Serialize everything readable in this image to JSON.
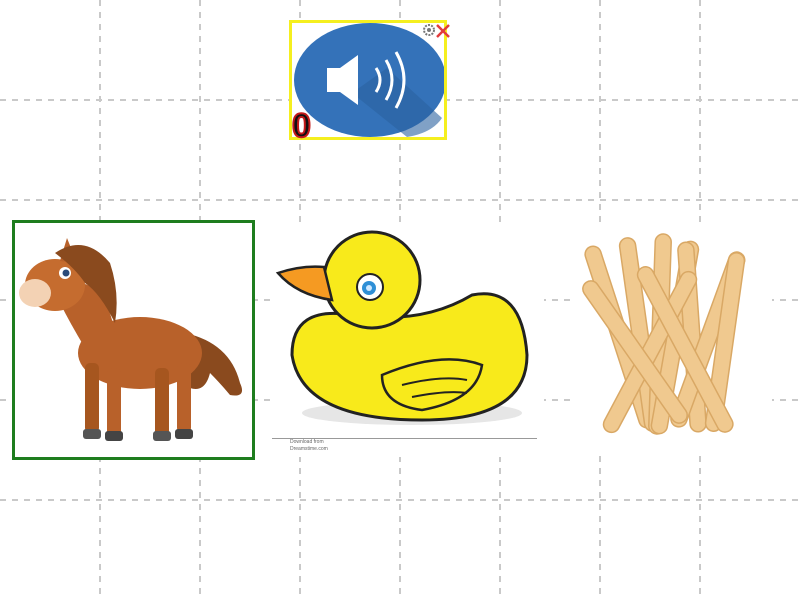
{
  "sound_card": {
    "counter": "0",
    "icons": [
      "speaker-icon",
      "gear-icon",
      "close-icon"
    ],
    "border_color": "#f5ef1f",
    "oval_color": "#3472b9"
  },
  "options": [
    {
      "id": "horse",
      "icon": "horse-picture",
      "selected": true,
      "border_color": "#1e7d1e"
    },
    {
      "id": "duck",
      "icon": "duck-picture",
      "selected": false
    },
    {
      "id": "sticks",
      "icon": "popsicle-sticks-picture",
      "selected": false
    }
  ],
  "duck_watermark": {
    "line1": "Download from",
    "line2": "Dreamstime.com"
  }
}
